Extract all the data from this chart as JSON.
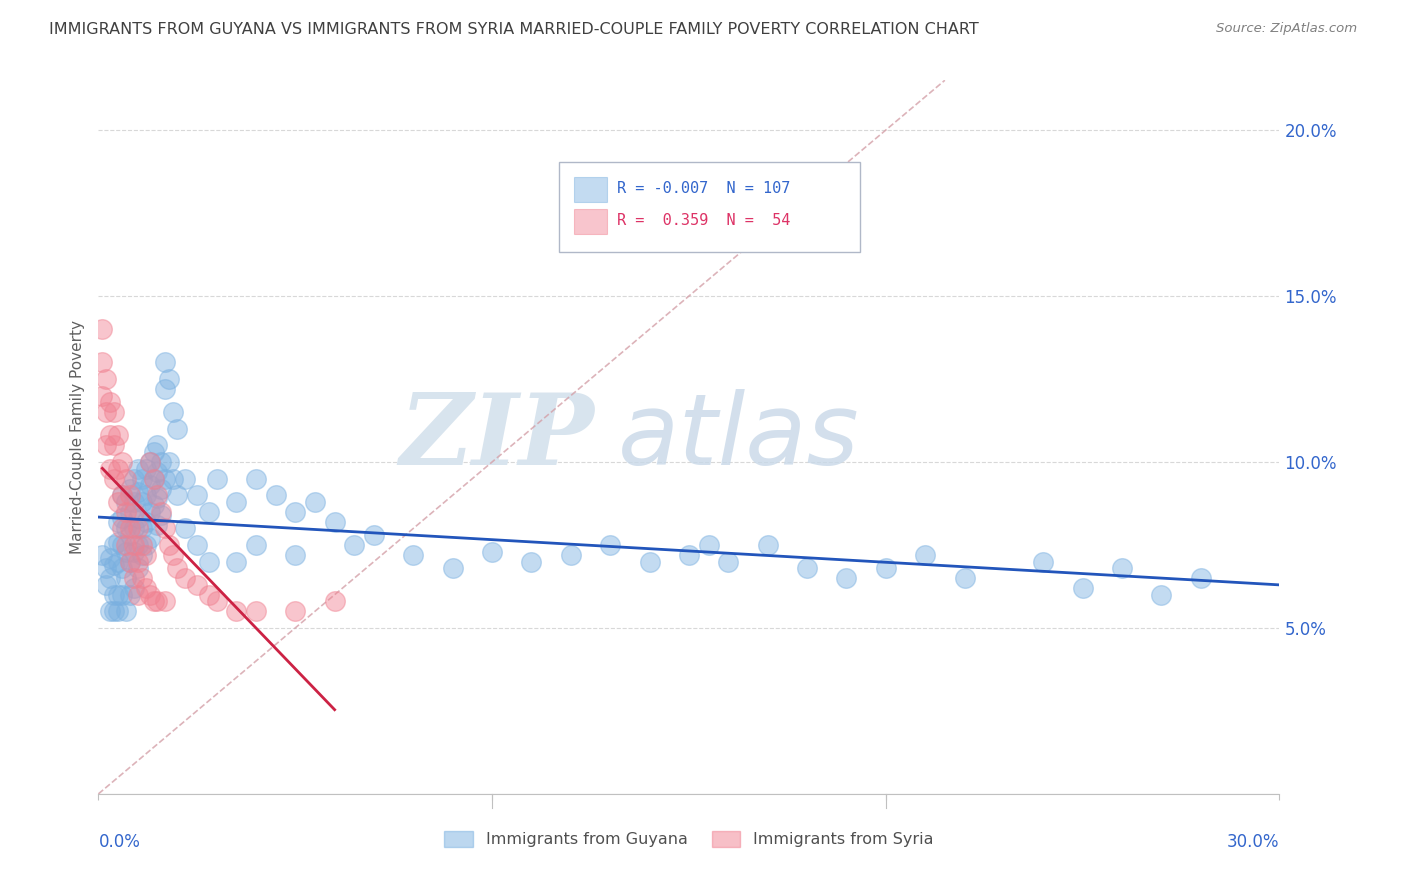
{
  "title": "IMMIGRANTS FROM GUYANA VS IMMIGRANTS FROM SYRIA MARRIED-COUPLE FAMILY POVERTY CORRELATION CHART",
  "source": "Source: ZipAtlas.com",
  "ylabel": "Married-Couple Family Poverty",
  "x_lim": [
    0.0,
    0.3
  ],
  "y_lim": [
    0.0,
    0.215
  ],
  "guyana_color": "#7ab0e0",
  "syria_color": "#f08090",
  "regression_line_guyana_color": "#2255bb",
  "regression_line_syria_color": "#cc2244",
  "diagonal_color": "#e8b0b0",
  "watermark_zip": "ZIP",
  "watermark_atlas": "atlas",
  "background_color": "#ffffff",
  "grid_color": "#d8d8d8",
  "title_color": "#404040",
  "axis_label_color": "#3366cc",
  "guyana_points": [
    [
      0.001,
      0.072
    ],
    [
      0.002,
      0.068
    ],
    [
      0.002,
      0.063
    ],
    [
      0.003,
      0.071
    ],
    [
      0.003,
      0.065
    ],
    [
      0.003,
      0.055
    ],
    [
      0.004,
      0.075
    ],
    [
      0.004,
      0.069
    ],
    [
      0.004,
      0.06
    ],
    [
      0.004,
      0.055
    ],
    [
      0.005,
      0.082
    ],
    [
      0.005,
      0.076
    ],
    [
      0.005,
      0.07
    ],
    [
      0.005,
      0.06
    ],
    [
      0.005,
      0.055
    ],
    [
      0.006,
      0.09
    ],
    [
      0.006,
      0.083
    ],
    [
      0.006,
      0.075
    ],
    [
      0.006,
      0.068
    ],
    [
      0.006,
      0.06
    ],
    [
      0.007,
      0.088
    ],
    [
      0.007,
      0.08
    ],
    [
      0.007,
      0.073
    ],
    [
      0.007,
      0.065
    ],
    [
      0.007,
      0.055
    ],
    [
      0.008,
      0.092
    ],
    [
      0.008,
      0.085
    ],
    [
      0.008,
      0.078
    ],
    [
      0.008,
      0.07
    ],
    [
      0.008,
      0.06
    ],
    [
      0.009,
      0.095
    ],
    [
      0.009,
      0.088
    ],
    [
      0.009,
      0.08
    ],
    [
      0.009,
      0.073
    ],
    [
      0.009,
      0.062
    ],
    [
      0.01,
      0.098
    ],
    [
      0.01,
      0.091
    ],
    [
      0.01,
      0.083
    ],
    [
      0.01,
      0.075
    ],
    [
      0.01,
      0.068
    ],
    [
      0.011,
      0.095
    ],
    [
      0.011,
      0.088
    ],
    [
      0.011,
      0.08
    ],
    [
      0.011,
      0.072
    ],
    [
      0.012,
      0.098
    ],
    [
      0.012,
      0.09
    ],
    [
      0.012,
      0.082
    ],
    [
      0.012,
      0.075
    ],
    [
      0.013,
      0.1
    ],
    [
      0.013,
      0.093
    ],
    [
      0.013,
      0.085
    ],
    [
      0.013,
      0.077
    ],
    [
      0.014,
      0.103
    ],
    [
      0.014,
      0.095
    ],
    [
      0.014,
      0.087
    ],
    [
      0.015,
      0.105
    ],
    [
      0.015,
      0.097
    ],
    [
      0.015,
      0.089
    ],
    [
      0.015,
      0.081
    ],
    [
      0.016,
      0.1
    ],
    [
      0.016,
      0.092
    ],
    [
      0.016,
      0.084
    ],
    [
      0.017,
      0.13
    ],
    [
      0.017,
      0.122
    ],
    [
      0.017,
      0.095
    ],
    [
      0.018,
      0.125
    ],
    [
      0.018,
      0.1
    ],
    [
      0.019,
      0.115
    ],
    [
      0.019,
      0.095
    ],
    [
      0.02,
      0.11
    ],
    [
      0.02,
      0.09
    ],
    [
      0.022,
      0.095
    ],
    [
      0.022,
      0.08
    ],
    [
      0.025,
      0.09
    ],
    [
      0.025,
      0.075
    ],
    [
      0.028,
      0.085
    ],
    [
      0.028,
      0.07
    ],
    [
      0.03,
      0.095
    ],
    [
      0.035,
      0.088
    ],
    [
      0.035,
      0.07
    ],
    [
      0.04,
      0.095
    ],
    [
      0.04,
      0.075
    ],
    [
      0.045,
      0.09
    ],
    [
      0.05,
      0.085
    ],
    [
      0.05,
      0.072
    ],
    [
      0.055,
      0.088
    ],
    [
      0.06,
      0.082
    ],
    [
      0.065,
      0.075
    ],
    [
      0.07,
      0.078
    ],
    [
      0.08,
      0.072
    ],
    [
      0.09,
      0.068
    ],
    [
      0.1,
      0.073
    ],
    [
      0.11,
      0.07
    ],
    [
      0.12,
      0.072
    ],
    [
      0.13,
      0.075
    ],
    [
      0.14,
      0.07
    ],
    [
      0.15,
      0.072
    ],
    [
      0.155,
      0.075
    ],
    [
      0.16,
      0.07
    ],
    [
      0.17,
      0.075
    ],
    [
      0.18,
      0.068
    ],
    [
      0.19,
      0.065
    ],
    [
      0.2,
      0.068
    ],
    [
      0.21,
      0.072
    ],
    [
      0.22,
      0.065
    ],
    [
      0.24,
      0.07
    ],
    [
      0.25,
      0.062
    ],
    [
      0.26,
      0.068
    ],
    [
      0.27,
      0.06
    ],
    [
      0.28,
      0.065
    ]
  ],
  "syria_points": [
    [
      0.001,
      0.14
    ],
    [
      0.001,
      0.13
    ],
    [
      0.001,
      0.12
    ],
    [
      0.002,
      0.125
    ],
    [
      0.002,
      0.115
    ],
    [
      0.002,
      0.105
    ],
    [
      0.003,
      0.118
    ],
    [
      0.003,
      0.108
    ],
    [
      0.003,
      0.098
    ],
    [
      0.004,
      0.115
    ],
    [
      0.004,
      0.105
    ],
    [
      0.004,
      0.095
    ],
    [
      0.005,
      0.108
    ],
    [
      0.005,
      0.098
    ],
    [
      0.005,
      0.088
    ],
    [
      0.006,
      0.1
    ],
    [
      0.006,
      0.09
    ],
    [
      0.006,
      0.08
    ],
    [
      0.007,
      0.095
    ],
    [
      0.007,
      0.085
    ],
    [
      0.007,
      0.075
    ],
    [
      0.008,
      0.09
    ],
    [
      0.008,
      0.08
    ],
    [
      0.008,
      0.07
    ],
    [
      0.009,
      0.085
    ],
    [
      0.009,
      0.075
    ],
    [
      0.009,
      0.065
    ],
    [
      0.01,
      0.08
    ],
    [
      0.01,
      0.07
    ],
    [
      0.01,
      0.06
    ],
    [
      0.011,
      0.075
    ],
    [
      0.011,
      0.065
    ],
    [
      0.012,
      0.072
    ],
    [
      0.012,
      0.062
    ],
    [
      0.013,
      0.1
    ],
    [
      0.013,
      0.06
    ],
    [
      0.014,
      0.095
    ],
    [
      0.014,
      0.058
    ],
    [
      0.015,
      0.09
    ],
    [
      0.015,
      0.058
    ],
    [
      0.016,
      0.085
    ],
    [
      0.017,
      0.08
    ],
    [
      0.017,
      0.058
    ],
    [
      0.018,
      0.075
    ],
    [
      0.019,
      0.072
    ],
    [
      0.02,
      0.068
    ],
    [
      0.022,
      0.065
    ],
    [
      0.025,
      0.063
    ],
    [
      0.028,
      0.06
    ],
    [
      0.03,
      0.058
    ],
    [
      0.035,
      0.055
    ],
    [
      0.04,
      0.055
    ],
    [
      0.05,
      0.055
    ],
    [
      0.06,
      0.058
    ]
  ]
}
